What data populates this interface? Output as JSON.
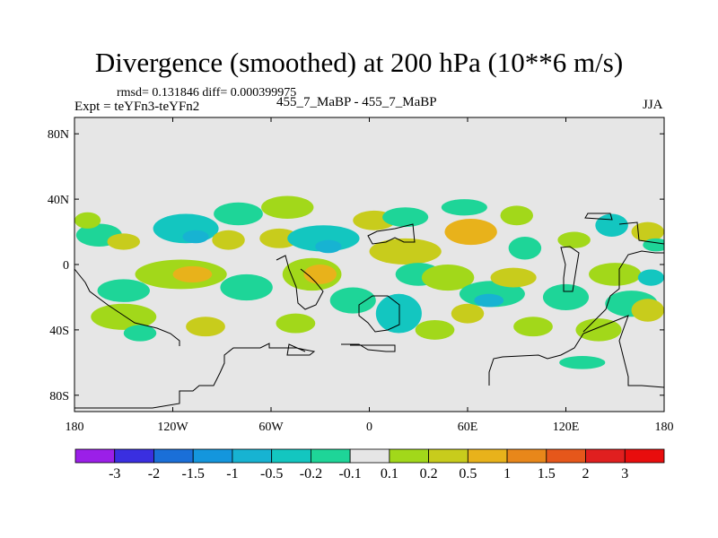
{
  "chart_data": {
    "type": "heatmap",
    "title": "Divergence (smoothed) at 200 hPa (10**6 m/s)",
    "stats_line": "rmsd= 0.131846  diff= 0.000399975",
    "left_label": "Expt = teYFn3-teYFn2",
    "center_label": "455_7_MaBP - 455_7_MaBP",
    "right_label": "JJA",
    "x_axis": {
      "range": [
        -180,
        180
      ],
      "tick_values": [
        -180,
        -120,
        -60,
        0,
        60,
        120,
        180
      ],
      "tick_labels": [
        "180",
        "120W",
        "60W",
        "0",
        "60E",
        "120E",
        "180"
      ]
    },
    "y_axis": {
      "range": [
        -90,
        90
      ],
      "tick_values": [
        80,
        40,
        0,
        -40,
        -80
      ],
      "tick_labels": [
        "80N",
        "40N",
        "0",
        "40S",
        "80S"
      ]
    },
    "colorbar": {
      "levels": [
        "-3",
        "-2",
        "-1.5",
        "-1",
        "-0.5",
        "-0.2",
        "-0.1",
        "0.1",
        "0.2",
        "0.5",
        "1",
        "1.5",
        "2",
        "3"
      ],
      "colors": [
        "#9b1fe8",
        "#3a2fe0",
        "#1a6fd8",
        "#1496dd",
        "#17b3d2",
        "#13c6c0",
        "#1ed598",
        "#e6e6e6",
        "#a2d81a",
        "#c8cc1c",
        "#e8b21b",
        "#e8871a",
        "#e6571b",
        "#e01f1f",
        "#e80d0d"
      ]
    },
    "field_blobs": [
      {
        "lon": -165,
        "lat": 18,
        "rx": 14,
        "ry": 7,
        "v": -0.15
      },
      {
        "lon": -172,
        "lat": 27,
        "rx": 8,
        "ry": 5,
        "v": 0.15
      },
      {
        "lon": -150,
        "lat": 14,
        "rx": 10,
        "ry": 5,
        "v": 0.3
      },
      {
        "lon": -112,
        "lat": 22,
        "rx": 20,
        "ry": 9,
        "v": -0.3
      },
      {
        "lon": -106,
        "lat": 17,
        "rx": 8,
        "ry": 4,
        "v": -0.6
      },
      {
        "lon": -80,
        "lat": 31,
        "rx": 15,
        "ry": 7,
        "v": -0.15
      },
      {
        "lon": -86,
        "lat": 15,
        "rx": 10,
        "ry": 6,
        "v": 0.3
      },
      {
        "lon": -55,
        "lat": 16,
        "rx": 12,
        "ry": 6,
        "v": 0.3
      },
      {
        "lon": -50,
        "lat": 35,
        "rx": 16,
        "ry": 7,
        "v": 0.15
      },
      {
        "lon": -28,
        "lat": 16,
        "rx": 22,
        "ry": 8,
        "v": -0.3
      },
      {
        "lon": -25,
        "lat": 11,
        "rx": 8,
        "ry": 4,
        "v": -0.6
      },
      {
        "lon": 3,
        "lat": 27,
        "rx": 13,
        "ry": 6,
        "v": 0.3
      },
      {
        "lon": 22,
        "lat": 29,
        "rx": 14,
        "ry": 6,
        "v": -0.15
      },
      {
        "lon": 22,
        "lat": 8,
        "rx": 22,
        "ry": 8,
        "v": 0.3
      },
      {
        "lon": 62,
        "lat": 20,
        "rx": 16,
        "ry": 8,
        "v": 0.6
      },
      {
        "lon": 58,
        "lat": 35,
        "rx": 14,
        "ry": 5,
        "v": -0.15
      },
      {
        "lon": 90,
        "lat": 30,
        "rx": 10,
        "ry": 6,
        "v": 0.15
      },
      {
        "lon": 95,
        "lat": 10,
        "rx": 10,
        "ry": 7,
        "v": -0.15
      },
      {
        "lon": 125,
        "lat": 15,
        "rx": 10,
        "ry": 5,
        "v": 0.15
      },
      {
        "lon": 148,
        "lat": 24,
        "rx": 10,
        "ry": 7,
        "v": -0.3
      },
      {
        "lon": 170,
        "lat": 20,
        "rx": 10,
        "ry": 6,
        "v": 0.3
      },
      {
        "lon": 175,
        "lat": 12,
        "rx": 8,
        "ry": 4,
        "v": -0.15
      },
      {
        "lon": -150,
        "lat": -16,
        "rx": 16,
        "ry": 7,
        "v": -0.15
      },
      {
        "lon": -115,
        "lat": -6,
        "rx": 28,
        "ry": 9,
        "v": 0.15
      },
      {
        "lon": -108,
        "lat": -6,
        "rx": 12,
        "ry": 5,
        "v": 0.6
      },
      {
        "lon": -75,
        "lat": -14,
        "rx": 16,
        "ry": 8,
        "v": -0.15
      },
      {
        "lon": -35,
        "lat": -6,
        "rx": 18,
        "ry": 10,
        "v": 0.15
      },
      {
        "lon": -30,
        "lat": -6,
        "rx": 10,
        "ry": 6,
        "v": 0.6
      },
      {
        "lon": -10,
        "lat": -22,
        "rx": 14,
        "ry": 8,
        "v": -0.15
      },
      {
        "lon": 18,
        "lat": -30,
        "rx": 14,
        "ry": 12,
        "v": -0.3
      },
      {
        "lon": 30,
        "lat": -6,
        "rx": 14,
        "ry": 7,
        "v": -0.15
      },
      {
        "lon": 48,
        "lat": -8,
        "rx": 16,
        "ry": 8,
        "v": 0.15
      },
      {
        "lon": 75,
        "lat": -18,
        "rx": 20,
        "ry": 8,
        "v": -0.15
      },
      {
        "lon": 73,
        "lat": -22,
        "rx": 9,
        "ry": 4,
        "v": -0.6
      },
      {
        "lon": 88,
        "lat": -8,
        "rx": 14,
        "ry": 6,
        "v": 0.3
      },
      {
        "lon": 120,
        "lat": -20,
        "rx": 14,
        "ry": 8,
        "v": -0.15
      },
      {
        "lon": 150,
        "lat": -6,
        "rx": 16,
        "ry": 7,
        "v": 0.15
      },
      {
        "lon": 160,
        "lat": -24,
        "rx": 16,
        "ry": 8,
        "v": -0.15
      },
      {
        "lon": 172,
        "lat": -8,
        "rx": 8,
        "ry": 5,
        "v": -0.3
      },
      {
        "lon": -150,
        "lat": -32,
        "rx": 20,
        "ry": 8,
        "v": 0.15
      },
      {
        "lon": -140,
        "lat": -42,
        "rx": 10,
        "ry": 5,
        "v": -0.15
      },
      {
        "lon": -100,
        "lat": -38,
        "rx": 12,
        "ry": 6,
        "v": 0.3
      },
      {
        "lon": -45,
        "lat": -36,
        "rx": 12,
        "ry": 6,
        "v": 0.15
      },
      {
        "lon": 40,
        "lat": -40,
        "rx": 12,
        "ry": 6,
        "v": 0.15
      },
      {
        "lon": 60,
        "lat": -30,
        "rx": 10,
        "ry": 6,
        "v": 0.3
      },
      {
        "lon": 100,
        "lat": -38,
        "rx": 12,
        "ry": 6,
        "v": 0.15
      },
      {
        "lon": 140,
        "lat": -40,
        "rx": 14,
        "ry": 7,
        "v": 0.15
      },
      {
        "lon": 170,
        "lat": -28,
        "rx": 10,
        "ry": 7,
        "v": 0.3
      },
      {
        "lon": 130,
        "lat": -60,
        "rx": 14,
        "ry": 4,
        "v": -0.15
      }
    ]
  }
}
